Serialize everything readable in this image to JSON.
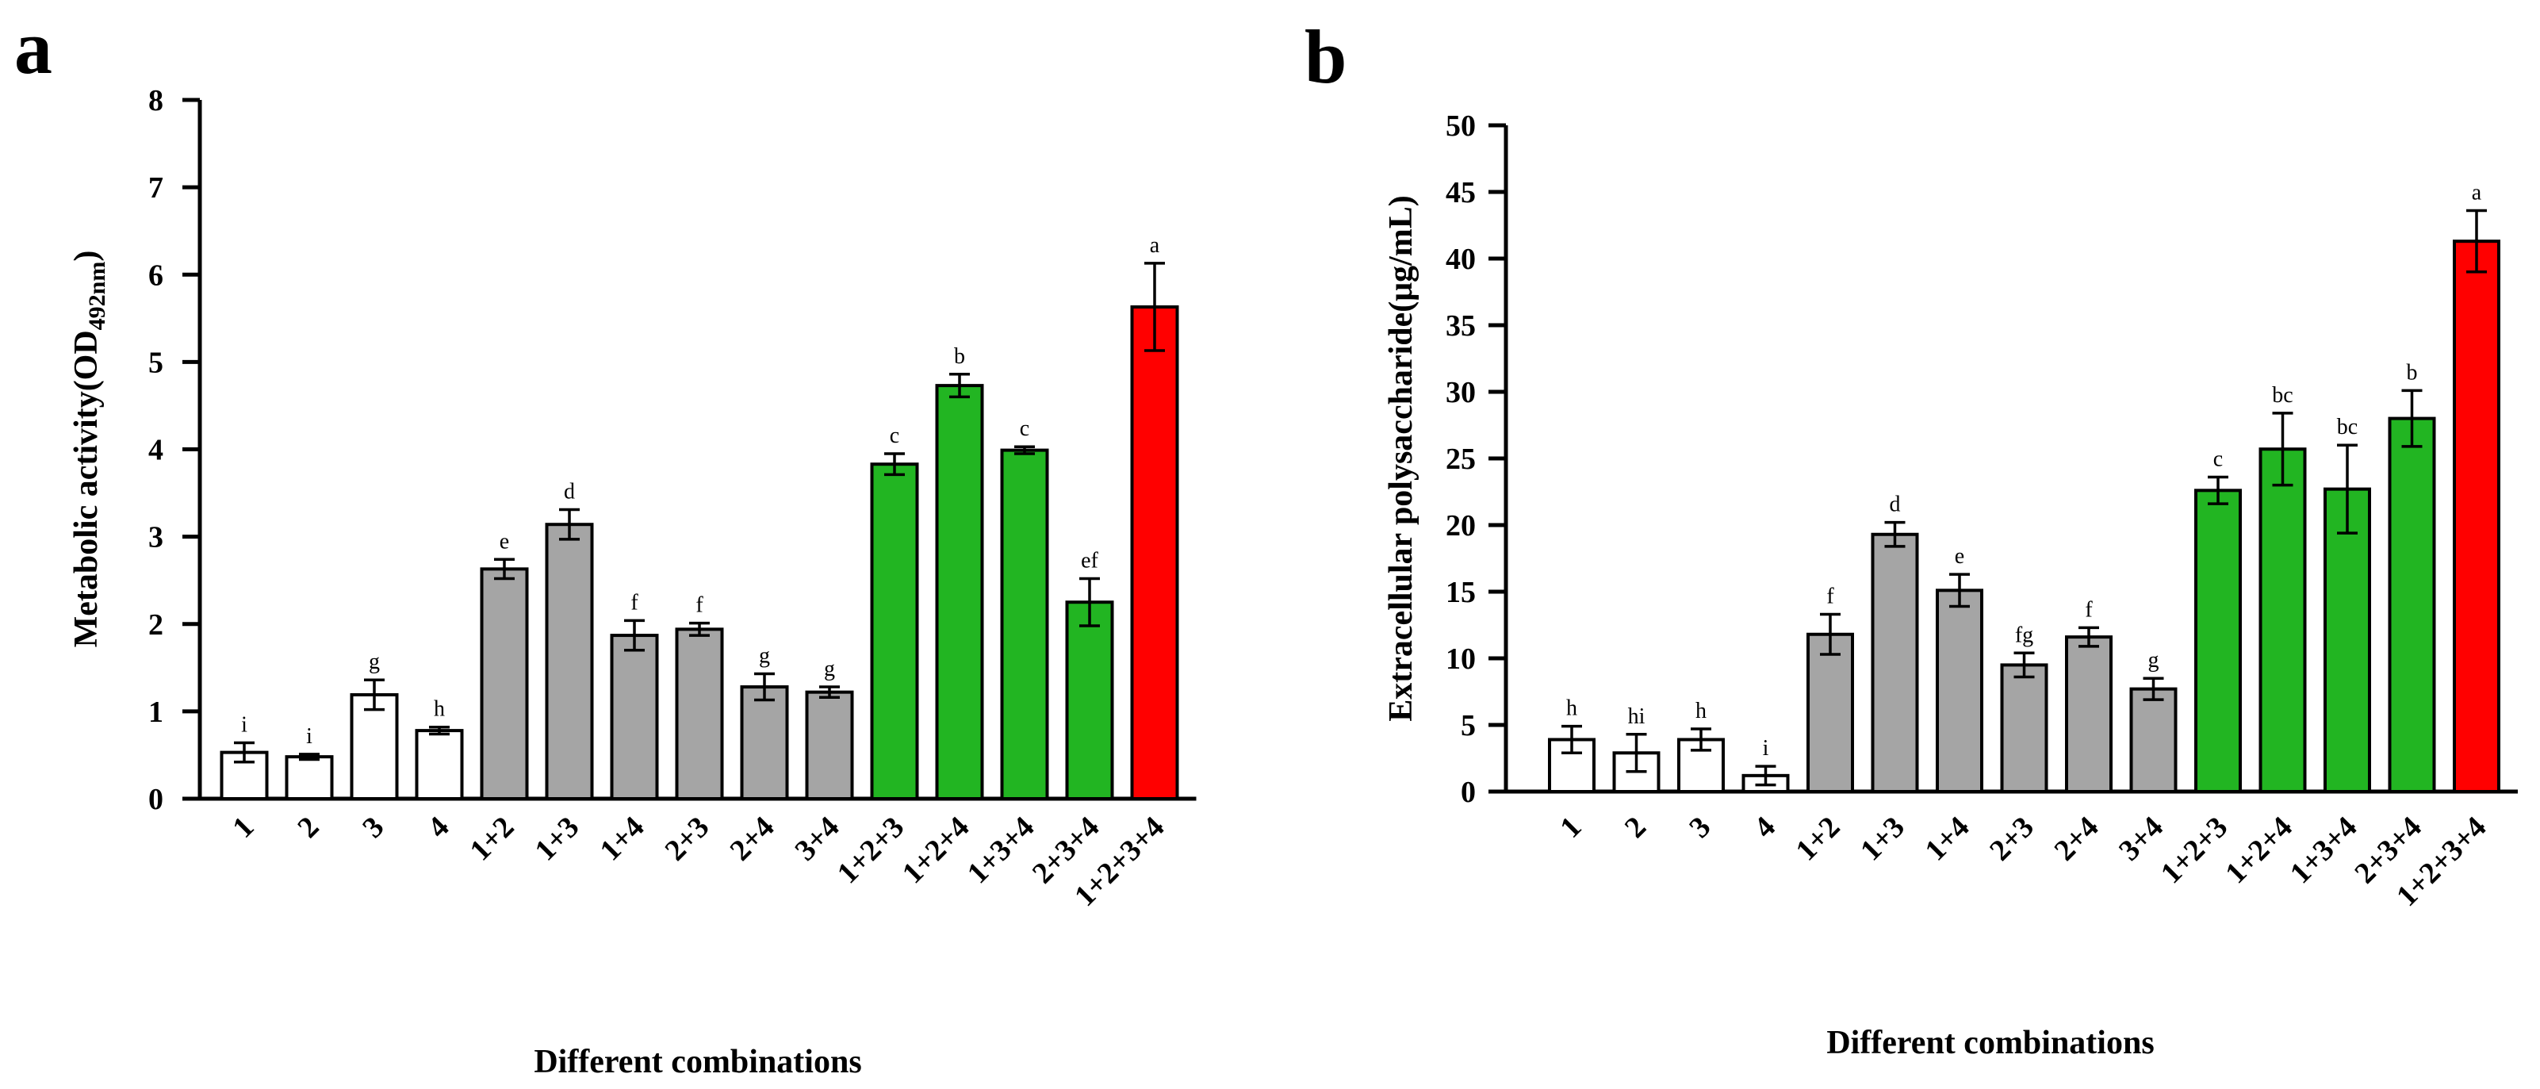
{
  "chart_data": [
    {
      "panel": "a",
      "type": "bar",
      "title": "",
      "xlabel": "Different combinations",
      "ylabel_main": "Metabolic activity(OD",
      "ylabel_sub": "492nm",
      "ylabel_end": ")",
      "ylim": [
        0,
        8
      ],
      "yticks": [
        0,
        1,
        2,
        3,
        4,
        5,
        6,
        7,
        8
      ],
      "grid": false,
      "categories": [
        "1",
        "2",
        "3",
        "4",
        "1+2",
        "1+3",
        "1+4",
        "2+3",
        "2+4",
        "3+4",
        "1+2+3",
        "1+2+4",
        "1+3+4",
        "2+3+4",
        "1+2+3+4"
      ],
      "values": [
        0.53,
        0.48,
        1.19,
        0.78,
        2.63,
        3.14,
        1.87,
        1.94,
        1.28,
        1.22,
        3.83,
        4.73,
        3.99,
        2.25,
        5.63
      ],
      "errors": [
        0.11,
        0.03,
        0.17,
        0.04,
        0.11,
        0.17,
        0.17,
        0.07,
        0.15,
        0.06,
        0.12,
        0.13,
        0.04,
        0.27,
        0.5
      ],
      "letters": [
        "i",
        "i",
        "g",
        "h",
        "e",
        "d",
        "f",
        "f",
        "g",
        "g",
        "c",
        "b",
        "c",
        "ef",
        "a"
      ],
      "bar_colors": [
        "#ffffff",
        "#ffffff",
        "#ffffff",
        "#ffffff",
        "#a5a5a5",
        "#a5a5a5",
        "#a5a5a5",
        "#a5a5a5",
        "#a5a5a5",
        "#a5a5a5",
        "#22b522",
        "#22b522",
        "#22b522",
        "#22b522",
        "#ff0000"
      ]
    },
    {
      "panel": "b",
      "type": "bar",
      "title": "",
      "xlabel": "Different combinations",
      "ylabel_main": "Extracellular polysaccharide(μg/mL)",
      "ylabel_sub": "",
      "ylabel_end": "",
      "ylim": [
        0,
        50
      ],
      "yticks": [
        0,
        5,
        10,
        15,
        20,
        25,
        30,
        35,
        40,
        45,
        50
      ],
      "grid": false,
      "categories": [
        "1",
        "2",
        "3",
        "4",
        "1+2",
        "1+3",
        "1+4",
        "2+3",
        "2+4",
        "3+4",
        "1+2+3",
        "1+2+4",
        "1+3+4",
        "2+3+4",
        "1+2+3+4"
      ],
      "values": [
        3.9,
        2.9,
        3.9,
        1.2,
        11.8,
        19.3,
        15.1,
        9.5,
        11.6,
        7.7,
        22.6,
        25.7,
        22.7,
        28.0,
        41.3
      ],
      "errors": [
        1.0,
        1.4,
        0.8,
        0.7,
        1.5,
        0.9,
        1.2,
        0.9,
        0.7,
        0.8,
        1.0,
        2.7,
        3.3,
        2.1,
        2.3
      ],
      "letters": [
        "h",
        "hi",
        "h",
        "i",
        "f",
        "d",
        "e",
        "fg",
        "f",
        "g",
        "c",
        "bc",
        "bc",
        "b",
        "a"
      ],
      "bar_colors": [
        "#ffffff",
        "#ffffff",
        "#ffffff",
        "#ffffff",
        "#a5a5a5",
        "#a5a5a5",
        "#a5a5a5",
        "#a5a5a5",
        "#a5a5a5",
        "#a5a5a5",
        "#22b522",
        "#22b522",
        "#22b522",
        "#22b522",
        "#ff0000"
      ]
    }
  ]
}
